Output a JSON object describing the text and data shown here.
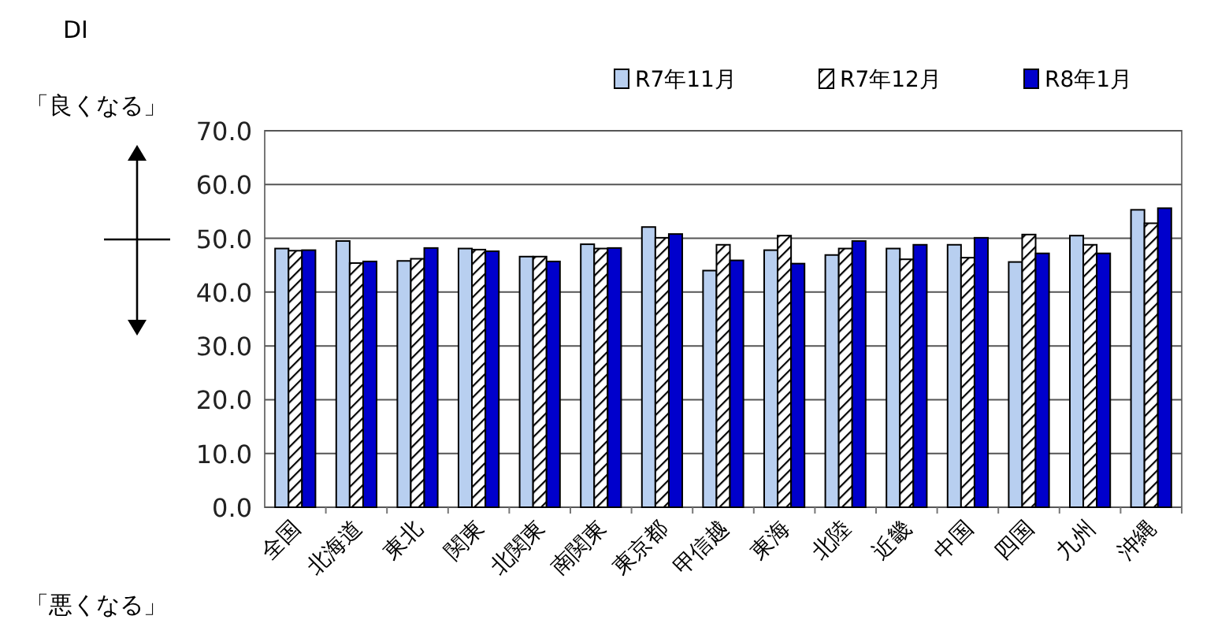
{
  "chart_data": {
    "type": "bar",
    "annotations": [
      "DI",
      "「良くなる」",
      "「悪くなる」"
    ],
    "categories": [
      "全国",
      "北海道",
      "東北",
      "関東",
      "北関東",
      "南関東",
      "東京都",
      "甲信越",
      "東海",
      "北陸",
      "近畿",
      "中国",
      "四国",
      "九州",
      "沖縄"
    ],
    "series": [
      {
        "name": "R7年11月",
        "color": "#b8cff0",
        "values": [
          48.1,
          49.5,
          45.8,
          48.1,
          46.6,
          48.9,
          52.1,
          44.0,
          47.8,
          46.9,
          48.1,
          48.8,
          45.6,
          50.5,
          55.3
        ]
      },
      {
        "name": "R7年12月",
        "color": "#000000",
        "values": [
          47.7,
          45.4,
          46.2,
          47.9,
          46.6,
          48.1,
          50.1,
          48.8,
          50.5,
          48.1,
          46.1,
          46.4,
          50.7,
          48.8,
          52.8
        ]
      },
      {
        "name": "R8年1月",
        "color": "#0000cc",
        "values": [
          47.8,
          45.7,
          48.2,
          47.6,
          45.7,
          48.2,
          50.8,
          45.9,
          45.3,
          49.5,
          48.8,
          50.1,
          47.2,
          47.2,
          55.6
        ]
      }
    ],
    "ylim": [
      0,
      70
    ],
    "yticks": [
      {
        "value": 0,
        "label": "0.0"
      },
      {
        "value": 10,
        "label": "10.0"
      },
      {
        "value": 20,
        "label": "20.0"
      },
      {
        "value": 30,
        "label": "30.0"
      },
      {
        "value": 40,
        "label": "40.0"
      },
      {
        "value": 50,
        "label": "50.0"
      },
      {
        "value": 60,
        "label": "60.0"
      },
      {
        "value": 70,
        "label": "70.0"
      }
    ],
    "grid": "y",
    "legend": "top"
  }
}
